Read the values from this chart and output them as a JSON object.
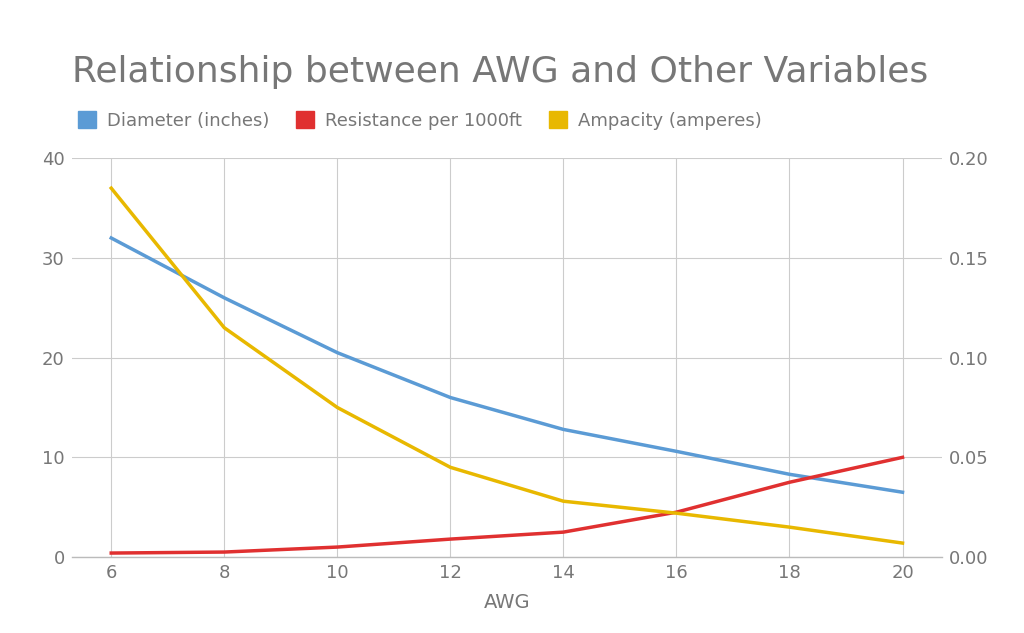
{
  "title": "Relationship between AWG and Other Variables",
  "xlabel": "AWG",
  "awg": [
    6,
    8,
    10,
    12,
    14,
    16,
    18,
    20
  ],
  "diameter_inches": [
    32.0,
    26.0,
    20.5,
    16.0,
    12.8,
    10.6,
    8.3,
    6.5
  ],
  "resistance_per_1000ft": [
    0.4,
    0.5,
    1.0,
    1.8,
    2.5,
    4.5,
    7.5,
    10.0
  ],
  "ampacity_amperes": [
    0.185,
    0.115,
    0.075,
    0.045,
    0.028,
    0.022,
    0.015,
    0.007
  ],
  "color_diameter": "#5b9bd5",
  "color_resistance": "#e03030",
  "color_ampacity": "#e8b800",
  "left_ylim": [
    0,
    40
  ],
  "right_ylim": [
    0,
    0.2
  ],
  "left_yticks": [
    0,
    10,
    20,
    30,
    40
  ],
  "right_yticks": [
    0.0,
    0.05,
    0.1,
    0.15,
    0.2
  ],
  "xticks": [
    6,
    8,
    10,
    12,
    14,
    16,
    18,
    20
  ],
  "title_fontsize": 26,
  "label_fontsize": 14,
  "tick_fontsize": 13,
  "legend_fontsize": 13,
  "line_width": 2.5,
  "background_color": "#ffffff",
  "grid_color": "#cccccc",
  "text_color": "#777777"
}
